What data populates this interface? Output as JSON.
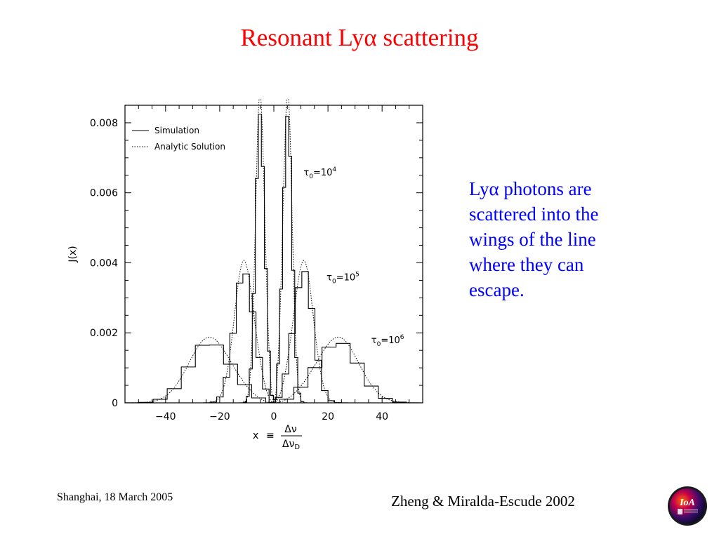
{
  "slide": {
    "title_prefix": "Resonant Ly",
    "title_symbol": "α",
    "title_suffix": " scattering",
    "body_lines": [
      "Lyα photons are",
      "scattered into the",
      "wings of the line",
      "where they can",
      "escape."
    ],
    "footer_left": "Shanghai, 18 March  2005",
    "footer_right": "Zheng & Miralda-Escude 2002",
    "logo_text": "IoA"
  },
  "chart_data": {
    "type": "line",
    "xlabel_prefix": "x",
    "xlabel_equiv": "≡",
    "xlabel_num": "Δν",
    "xlabel_den": "Δν",
    "xlabel_den_sub": "D",
    "ylabel": "J(x)",
    "xlim": [
      -55,
      55
    ],
    "ylim": [
      0,
      0.0085
    ],
    "xticks": [
      -40,
      -20,
      0,
      20,
      40
    ],
    "xtick_labels": [
      "−40",
      "−20",
      "0",
      "20",
      "40"
    ],
    "yticks": [
      0,
      0.002,
      0.004,
      0.006,
      0.008
    ],
    "ytick_labels": [
      "0",
      "0.002",
      "0.004",
      "0.006",
      "0.008"
    ],
    "legend_position": "top-left",
    "legend": [
      {
        "label": "Simulation",
        "style": "solid"
      },
      {
        "label": "Analytic Solution",
        "style": "dotted"
      }
    ],
    "annotations": [
      {
        "tau": "τ",
        "sub": "0",
        "eq": "=10",
        "sup": "4",
        "x": 11,
        "y": 0.0065
      },
      {
        "tau": "τ",
        "sub": "0",
        "eq": "=10",
        "sup": "5",
        "x": 19.5,
        "y": 0.0035
      },
      {
        "tau": "τ",
        "sub": "0",
        "eq": "=10",
        "sup": "6",
        "x": 36,
        "y": 0.0017
      }
    ],
    "series": [
      {
        "tau0_exp": 4,
        "peak_x": 5.6,
        "peak_value": 0.0085
      },
      {
        "tau0_exp": 5,
        "peak_x": 12.1,
        "peak_value": 0.0039
      },
      {
        "tau0_exp": 6,
        "peak_x": 26,
        "peak_value": 0.0018
      }
    ]
  }
}
